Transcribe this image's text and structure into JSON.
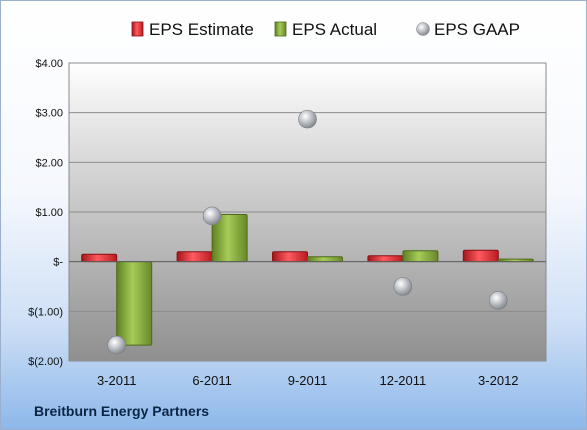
{
  "company": "Breitburn Energy Partners",
  "legend": [
    {
      "label": "EPS Estimate",
      "color": "#e0262c",
      "shape": "bar"
    },
    {
      "label": "EPS Actual",
      "color": "#8bb33c",
      "shape": "bar"
    },
    {
      "label": "EPS GAAP",
      "color": "#b5b9be",
      "shape": "ball"
    }
  ],
  "chart_data": {
    "type": "bar",
    "categories": [
      "3-2011",
      "6-2011",
      "9-2011",
      "12-2011",
      "3-2012"
    ],
    "series": [
      {
        "name": "EPS Estimate",
        "type": "bar",
        "color": "#e0262c",
        "values": [
          0.15,
          0.2,
          0.2,
          0.12,
          0.23
        ]
      },
      {
        "name": "EPS Actual",
        "type": "bar",
        "color": "#8bb33c",
        "values": [
          -1.68,
          0.95,
          0.1,
          0.22,
          0.05
        ]
      },
      {
        "name": "EPS GAAP",
        "type": "scatter",
        "color": "#b5b9be",
        "values": [
          -1.68,
          0.92,
          2.87,
          -0.5,
          -0.78
        ]
      }
    ],
    "yticks": [
      {
        "value": 4,
        "label": "$4.00"
      },
      {
        "value": 3,
        "label": "$3.00"
      },
      {
        "value": 2,
        "label": "$2.00"
      },
      {
        "value": 1,
        "label": "$1.00"
      },
      {
        "value": 0,
        "label": "$-"
      },
      {
        "value": -1,
        "label": "$(1.00)"
      },
      {
        "value": -2,
        "label": "$(2.00)"
      }
    ],
    "ylim": [
      -2,
      4
    ],
    "grid": true,
    "legend_position": "top"
  }
}
